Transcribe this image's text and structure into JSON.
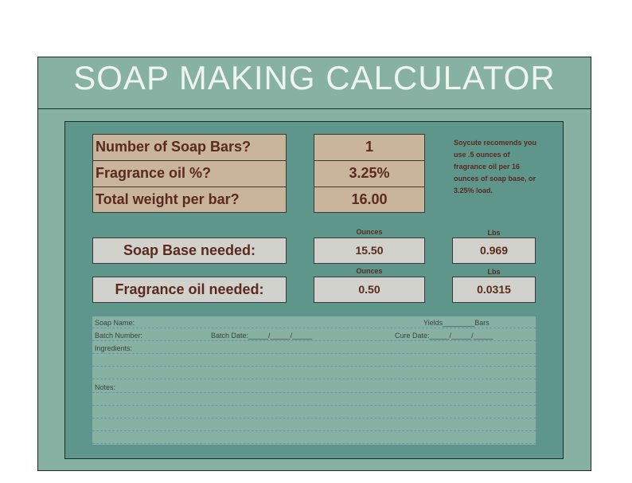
{
  "title": "SOAP MAKING CALCULATOR",
  "inputs": [
    {
      "label": "Number of Soap Bars?",
      "value": "1"
    },
    {
      "label": "Fragrance oil %?",
      "value": "3.25%"
    },
    {
      "label": "Total weight per bar?",
      "value": "16.00"
    }
  ],
  "note": "Soycute recomends you use .5 ounces of fragrance oil per 16 ounces of soap base, or 3.25% load.",
  "units": {
    "ounces": "Ounces",
    "lbs": "Lbs"
  },
  "results": [
    {
      "label": "Soap Base needed:",
      "ounces": "15.50",
      "lbs": "0.969"
    },
    {
      "label": "Fragrance oil needed:",
      "ounces": "0.50",
      "lbs": "0.0315"
    }
  ],
  "record": {
    "soap_name": "Soap Name:",
    "yields": "Yields________Bars",
    "batch_number": "Batch Number:",
    "batch_date": "Batch Date:_____/_____/_____",
    "cure_date": "Cure Date:_____/_____/_____",
    "ingredients": "Ingredients:",
    "notes": "Notes:"
  },
  "colors": {
    "teal_dark": "#5f968c",
    "teal_light": "#86b1a3",
    "tan": "#c9b49c",
    "grey": "#d2d2cc",
    "text_brown": "#5a2a1e"
  }
}
